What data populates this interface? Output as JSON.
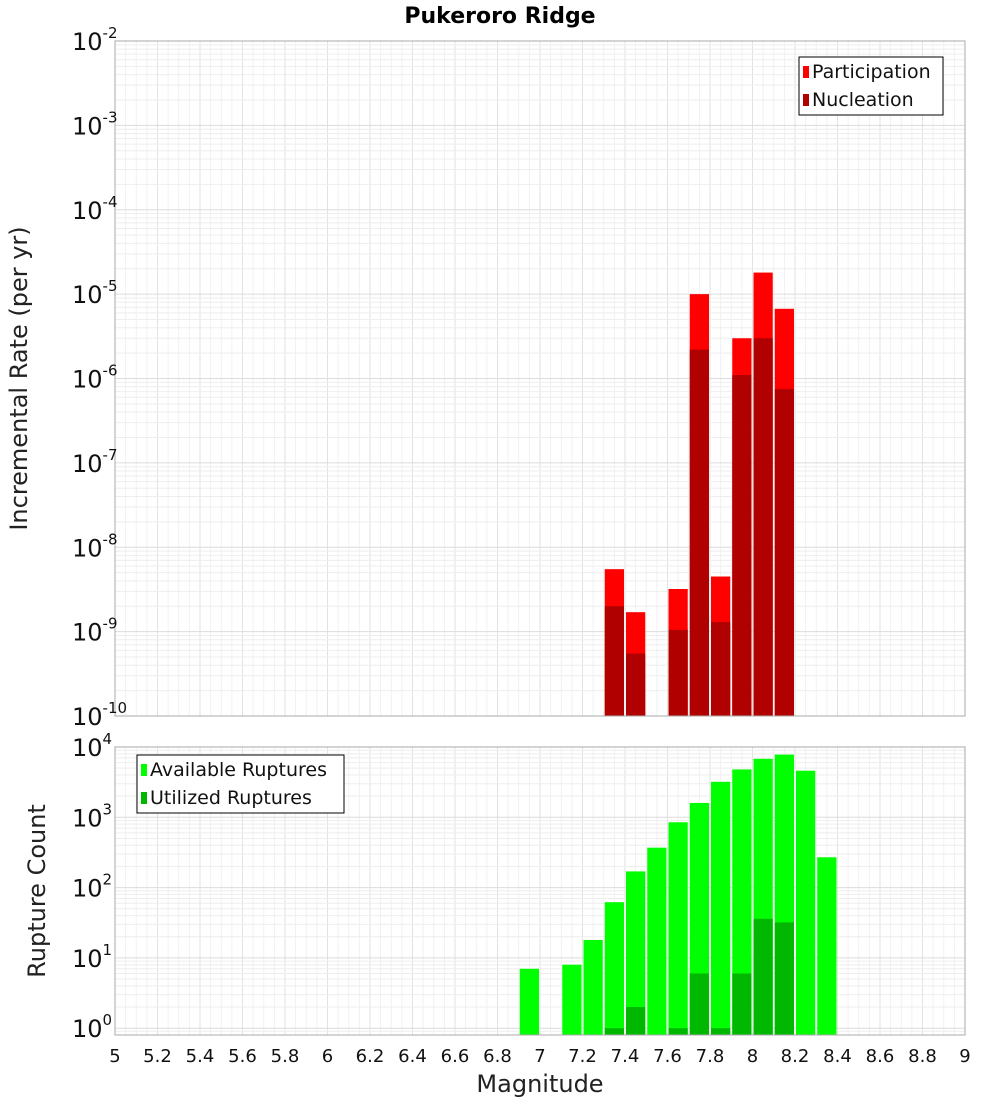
{
  "title": "Pukeroro Ridge",
  "chart_data": [
    {
      "type": "bar",
      "ylabel": "Incremental Rate (per yr)",
      "xlabel": "",
      "yscale": "log",
      "ylim": [
        1e-10,
        0.01
      ],
      "xlim": [
        5,
        9
      ],
      "grid": true,
      "legend_position": "top-right",
      "x": [
        7.35,
        7.45,
        7.65,
        7.75,
        7.85,
        7.95,
        8.05,
        8.15
      ],
      "series": [
        {
          "name": "Participation",
          "color": "#ff0000",
          "values": [
            5.5e-09,
            1.7e-09,
            3.2e-09,
            1e-05,
            4.5e-09,
            3e-06,
            1.8e-05,
            6.7e-06
          ]
        },
        {
          "name": "Nucleation",
          "color": "#b00000",
          "values": [
            2e-09,
            5.5e-10,
            1.05e-09,
            2.2e-06,
            1.3e-09,
            1.1e-06,
            3e-06,
            7.5e-07
          ]
        }
      ]
    },
    {
      "type": "bar",
      "ylabel": "Rupture Count",
      "xlabel": "Magnitude",
      "yscale": "log",
      "ylim": [
        0.8,
        10000
      ],
      "xlim": [
        5,
        9
      ],
      "grid": true,
      "legend_position": "top-left",
      "x": [
        6.95,
        7.15,
        7.25,
        7.35,
        7.45,
        7.55,
        7.65,
        7.75,
        7.85,
        7.95,
        8.05,
        8.15,
        8.25,
        8.35
      ],
      "series": [
        {
          "name": "Available Ruptures",
          "color": "#00ff00",
          "values": [
            7,
            8,
            18,
            62,
            170,
            370,
            850,
            1600,
            3200,
            4800,
            6800,
            7800,
            4600,
            270
          ]
        },
        {
          "name": "Utilized Ruptures",
          "color": "#00b800",
          "values": [
            null,
            null,
            null,
            1,
            2,
            null,
            1,
            6,
            1,
            6,
            36,
            32,
            null,
            null
          ]
        }
      ]
    }
  ],
  "x_ticks": [
    "5",
    "5.2",
    "5.4",
    "5.6",
    "5.8",
    "6",
    "6.2",
    "6.4",
    "6.6",
    "6.8",
    "7",
    "7.2",
    "7.4",
    "7.6",
    "7.8",
    "8",
    "8.2",
    "8.4",
    "8.6",
    "8.8",
    "9"
  ],
  "top_y_ticks": [
    {
      "base": "10",
      "exp": "-2"
    },
    {
      "base": "10",
      "exp": "-3"
    },
    {
      "base": "10",
      "exp": "-4"
    },
    {
      "base": "10",
      "exp": "-5"
    },
    {
      "base": "10",
      "exp": "-6"
    },
    {
      "base": "10",
      "exp": "-7"
    },
    {
      "base": "10",
      "exp": "-8"
    },
    {
      "base": "10",
      "exp": "-9"
    },
    {
      "base": "10",
      "exp": "-10"
    }
  ],
  "bottom_y_ticks": [
    {
      "base": "10",
      "exp": "4"
    },
    {
      "base": "10",
      "exp": "3"
    },
    {
      "base": "10",
      "exp": "2"
    },
    {
      "base": "10",
      "exp": "1"
    },
    {
      "base": "10",
      "exp": "0"
    }
  ]
}
